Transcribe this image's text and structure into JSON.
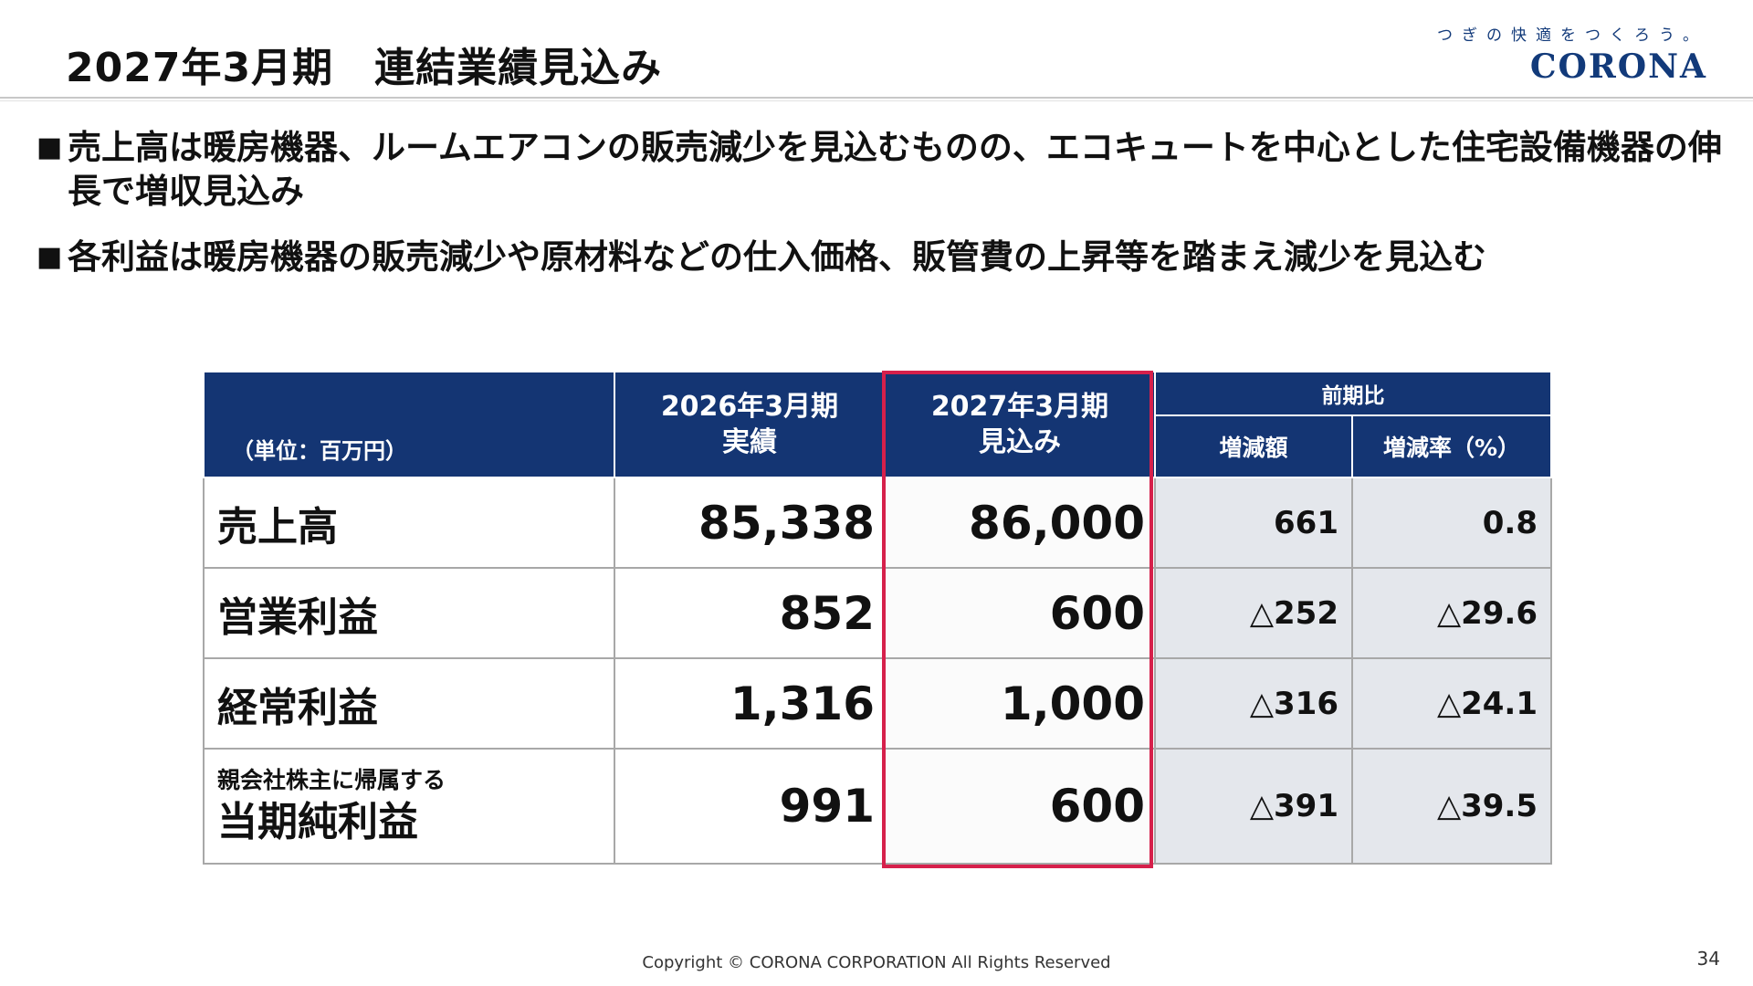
{
  "title": "2027年3月期　連結業績見込み",
  "logo": {
    "tagline": "つぎの快適をつくろう。",
    "wordmark": "CORONA",
    "color": "#123a7a"
  },
  "bullets": [
    {
      "mark": "■",
      "text": "売上高は暖房機器、ルームエアコンの販売減少を見込むものの、エコキュートを中心とした住宅設備機器の伸長で増収見込み"
    },
    {
      "mark": "■",
      "text": "各利益は暖房機器の販売減少や原材料などの仕入価格、販管費の上昇等を踏まえ減少を見込む"
    }
  ],
  "table": {
    "unit_label": "（単位：百万円）",
    "col_actual": [
      "2026年3月期",
      "実績"
    ],
    "col_forecast": [
      "2027年3月期",
      "見込み"
    ],
    "group_label": "前期比",
    "col_change": "増減額",
    "col_rate": "増減率（%）",
    "rows": [
      {
        "item": "売上高",
        "actual": "85,338",
        "forecast": "86,000",
        "change": "661",
        "rate": "0.8"
      },
      {
        "item": "営業利益",
        "actual": "852",
        "forecast": "600",
        "change": "△252",
        "rate": "△29.6"
      },
      {
        "item": "経常利益",
        "actual": "1,316",
        "forecast": "1,000",
        "change": "△316",
        "rate": "△24.1"
      },
      {
        "item_small": "親会社株主に帰属する",
        "item": "当期純利益",
        "actual": "991",
        "forecast": "600",
        "change": "△391",
        "rate": "△39.5"
      }
    ],
    "header_color": "#143573",
    "highlight_color": "#d6204b"
  },
  "footer": {
    "copyright": "Copyright © CORONA CORPORATION All Rights Reserved",
    "page": "34"
  }
}
